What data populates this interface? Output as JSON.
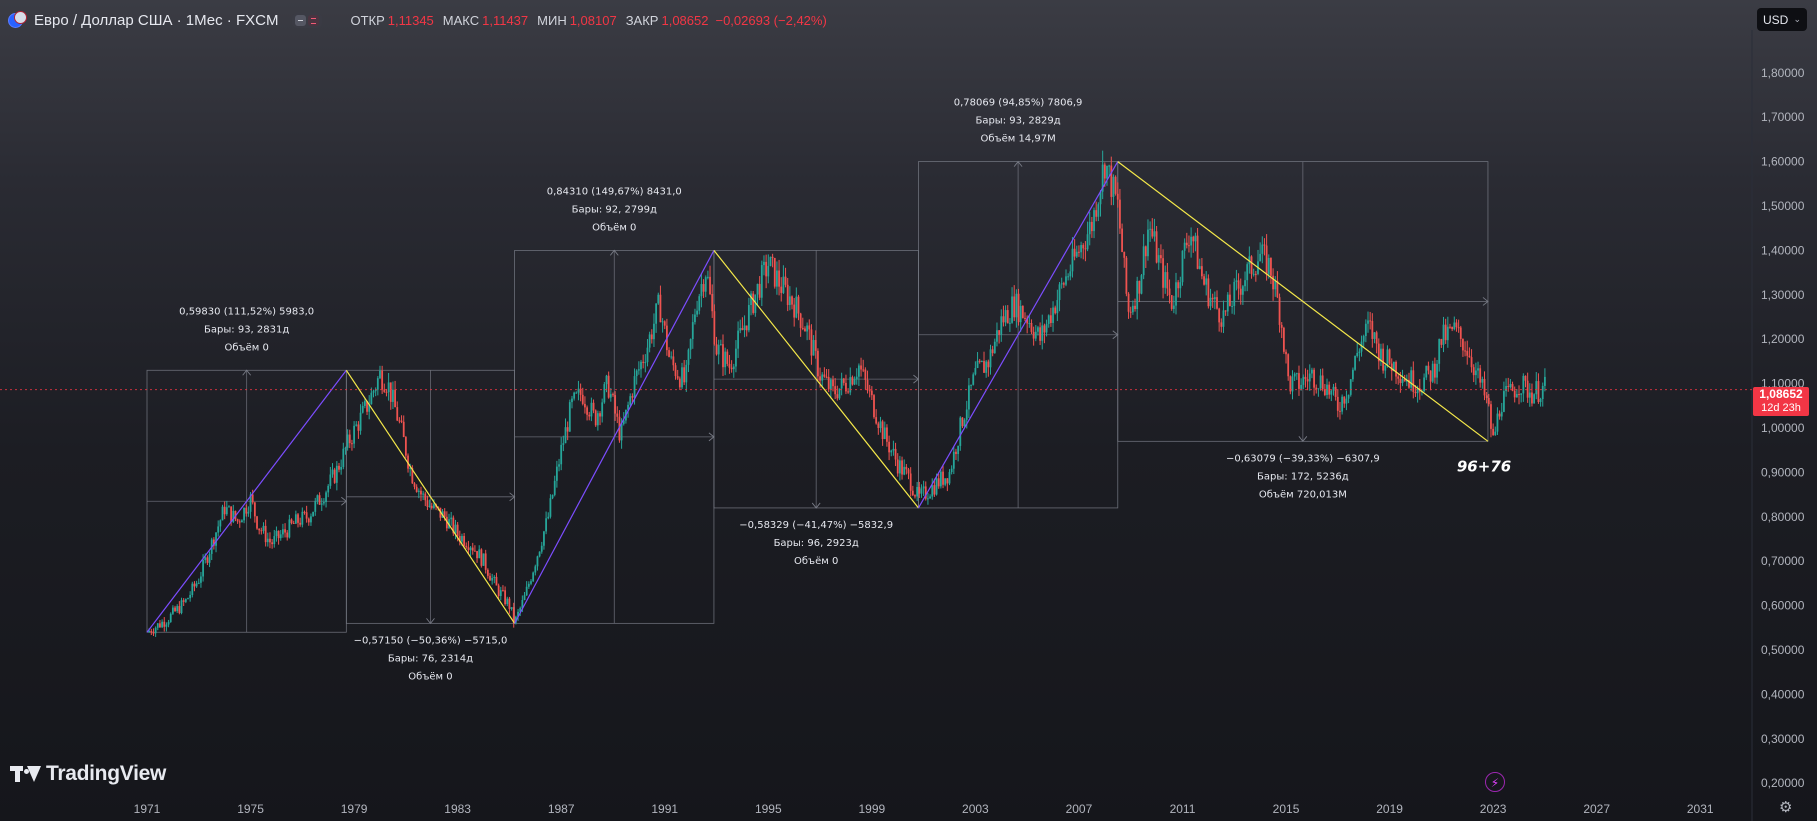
{
  "header": {
    "symbol": "Евро / Доллар США · 1Мес · FXCM",
    "ohlc": [
      {
        "key": "ОТКР",
        "value": "1,11345"
      },
      {
        "key": "МАКС",
        "value": "1,11437"
      },
      {
        "key": "МИН",
        "value": "1,08107"
      },
      {
        "key": "ЗАКР",
        "value": "1,08652"
      }
    ],
    "change": "−0,02693 (−2,42%)",
    "currency": "USD"
  },
  "last_price": {
    "price": "1,08652",
    "countdown": "12d 23h",
    "value": 1.08652
  },
  "logo": "TradingView",
  "colors": {
    "up": "#26a69a",
    "down": "#ef5350",
    "bull_line": "#7c4dff",
    "bear_line": "#f5e94a",
    "price_tag": "#f23645"
  },
  "icons": [
    "euro-dollar-flag-icon",
    "lightning-icon",
    "settings-gear-icon"
  ],
  "chart_data": {
    "type": "line",
    "title": "Евро / Доллар США · 1Мес · FXCM",
    "xlim": [
      1971,
      2033
    ],
    "ylim": [
      0.2,
      1.85
    ],
    "x_ticks": [
      "1971",
      "1975",
      "1979",
      "1983",
      "1987",
      "1991",
      "1995",
      "1999",
      "2003",
      "2007",
      "2011",
      "2015",
      "2019",
      "2023",
      "2027",
      "2031"
    ],
    "y_ticks": [
      "1,80000",
      "1,70000",
      "1,60000",
      "1,50000",
      "1,40000",
      "1,30000",
      "1,20000",
      "1,10000",
      "1,00000",
      "0,90000",
      "0,80000",
      "0,70000",
      "0,60000",
      "0,50000",
      "0,40000",
      "0,30000",
      "0,20000"
    ],
    "series": [
      {
        "x": [
          1971.0,
          1971.8,
          1972.5,
          1973.0,
          1973.5,
          1974.0,
          1974.5,
          1975.0,
          1975.3,
          1975.8,
          1976.2,
          1976.8,
          1977.2,
          1977.8,
          1978.3,
          1978.8,
          1979.5,
          1980.0,
          1980.3,
          1980.8,
          1981.2,
          1981.6,
          1982.0,
          1982.5,
          1983.0,
          1983.5,
          1984.0,
          1984.5,
          1985.0,
          1985.2,
          1985.6,
          1986.0,
          1986.5,
          1987.0,
          1987.4,
          1987.8,
          1988.3,
          1988.8,
          1989.3,
          1989.8,
          1990.3,
          1990.8,
          1991.2,
          1991.8,
          1992.2,
          1992.6,
          1993.0,
          1993.5,
          1994.0,
          1994.5,
          1995.0,
          1995.5,
          1996.0,
          1996.5,
          1997.0,
          1997.5,
          1998.0,
          1998.5,
          1999.0,
          1999.5,
          2000.0,
          2000.5,
          2000.8,
          2001.2,
          2001.6,
          2002.0,
          2002.5,
          2003.0,
          2003.5,
          2004.0,
          2004.5,
          2005.0,
          2005.5,
          2006.0,
          2006.5,
          2007.0,
          2007.5,
          2008.0,
          2008.5,
          2008.9,
          2009.3,
          2009.7,
          2010.2,
          2010.6,
          2011.0,
          2011.3,
          2011.8,
          2012.2,
          2012.6,
          2013.0,
          2013.5,
          2014.0,
          2014.4,
          2014.8,
          2015.1,
          2015.5,
          2016.0,
          2016.5,
          2017.0,
          2017.4,
          2017.8,
          2018.2,
          2018.7,
          2019.2,
          2019.7,
          2020.2,
          2020.7,
          2021.0,
          2021.5,
          2022.0,
          2022.5,
          2022.8,
          2023.0,
          2023.3,
          2023.7,
          2024.0,
          2024.5,
          2025.0
        ],
        "y": [
          0.54,
          0.57,
          0.61,
          0.66,
          0.74,
          0.82,
          0.79,
          0.84,
          0.78,
          0.74,
          0.76,
          0.79,
          0.8,
          0.85,
          0.9,
          0.97,
          1.05,
          1.12,
          1.1,
          1.0,
          0.9,
          0.85,
          0.82,
          0.8,
          0.76,
          0.74,
          0.7,
          0.64,
          0.6,
          0.56,
          0.62,
          0.7,
          0.8,
          0.95,
          1.05,
          1.08,
          1.02,
          1.1,
          0.98,
          1.1,
          1.18,
          1.28,
          1.15,
          1.1,
          1.28,
          1.36,
          1.18,
          1.14,
          1.22,
          1.3,
          1.37,
          1.32,
          1.28,
          1.22,
          1.12,
          1.08,
          1.1,
          1.14,
          1.06,
          0.98,
          0.92,
          0.88,
          0.84,
          0.86,
          0.88,
          0.9,
          1.02,
          1.12,
          1.15,
          1.24,
          1.28,
          1.25,
          1.2,
          1.27,
          1.34,
          1.4,
          1.46,
          1.6,
          1.5,
          1.26,
          1.32,
          1.46,
          1.35,
          1.28,
          1.38,
          1.45,
          1.33,
          1.28,
          1.25,
          1.3,
          1.35,
          1.39,
          1.36,
          1.25,
          1.1,
          1.1,
          1.12,
          1.1,
          1.05,
          1.09,
          1.18,
          1.23,
          1.16,
          1.14,
          1.11,
          1.1,
          1.13,
          1.2,
          1.22,
          1.18,
          1.1,
          1.05,
          0.97,
          1.06,
          1.08,
          1.1,
          1.08,
          1.09
        ]
      }
    ],
    "trend_lines": [
      {
        "from": [
          1971.0,
          0.54
        ],
        "to": [
          1978.7,
          1.13
        ],
        "direction": "up"
      },
      {
        "from": [
          1978.7,
          1.13
        ],
        "to": [
          1985.2,
          0.56
        ],
        "direction": "down"
      },
      {
        "from": [
          1985.2,
          0.56
        ],
        "to": [
          1992.9,
          1.4
        ],
        "direction": "up"
      },
      {
        "from": [
          1992.9,
          1.4
        ],
        "to": [
          2000.8,
          0.82
        ],
        "direction": "down"
      },
      {
        "from": [
          2000.8,
          0.82
        ],
        "to": [
          2008.5,
          1.6
        ],
        "direction": "up"
      },
      {
        "from": [
          2008.5,
          1.6
        ],
        "to": [
          2022.8,
          0.97
        ],
        "direction": "down"
      }
    ],
    "range_boxes": [
      {
        "x": [
          1971.0,
          1978.7
        ],
        "y": [
          0.54,
          1.13
        ],
        "lines": [
          "0,59830 (111,52%) 5983,0",
          "Бары: 93, 2831д",
          "Объём 0"
        ],
        "label_pos": "above"
      },
      {
        "x": [
          1978.7,
          1985.2
        ],
        "y": [
          0.56,
          1.13
        ],
        "lines": [
          "−0,57150 (−50,36%) −5715,0",
          "Бары: 76, 2314д",
          "Объём 0"
        ],
        "label_pos": "below"
      },
      {
        "x": [
          1985.2,
          1992.9
        ],
        "y": [
          0.56,
          1.4
        ],
        "lines": [
          "0,84310 (149,67%) 8431,0",
          "Бары: 92, 2799д",
          "Объём 0"
        ],
        "label_pos": "above"
      },
      {
        "x": [
          1992.9,
          2000.8
        ],
        "y": [
          0.82,
          1.4
        ],
        "lines": [
          "−0,58329 (−41,47%) −5832,9",
          "Бары: 96, 2923д",
          "Объём 0"
        ],
        "label_pos": "below"
      },
      {
        "x": [
          2000.8,
          2008.5
        ],
        "y": [
          0.82,
          1.6
        ],
        "lines": [
          "0,78069 (94,85%) 7806,9",
          "Бары: 93, 2829д",
          "Объём 14,97M"
        ],
        "label_pos": "above"
      },
      {
        "x": [
          2008.5,
          2022.8
        ],
        "y": [
          0.97,
          1.6
        ],
        "lines": [
          "−0,63079 (−39,33%) −6307,9",
          "Бары: 172, 5236д",
          "Объём 720,013M"
        ],
        "label_pos": "below"
      }
    ],
    "annotation": {
      "text": "96+76",
      "x": 2021.6,
      "y": 0.92
    }
  }
}
